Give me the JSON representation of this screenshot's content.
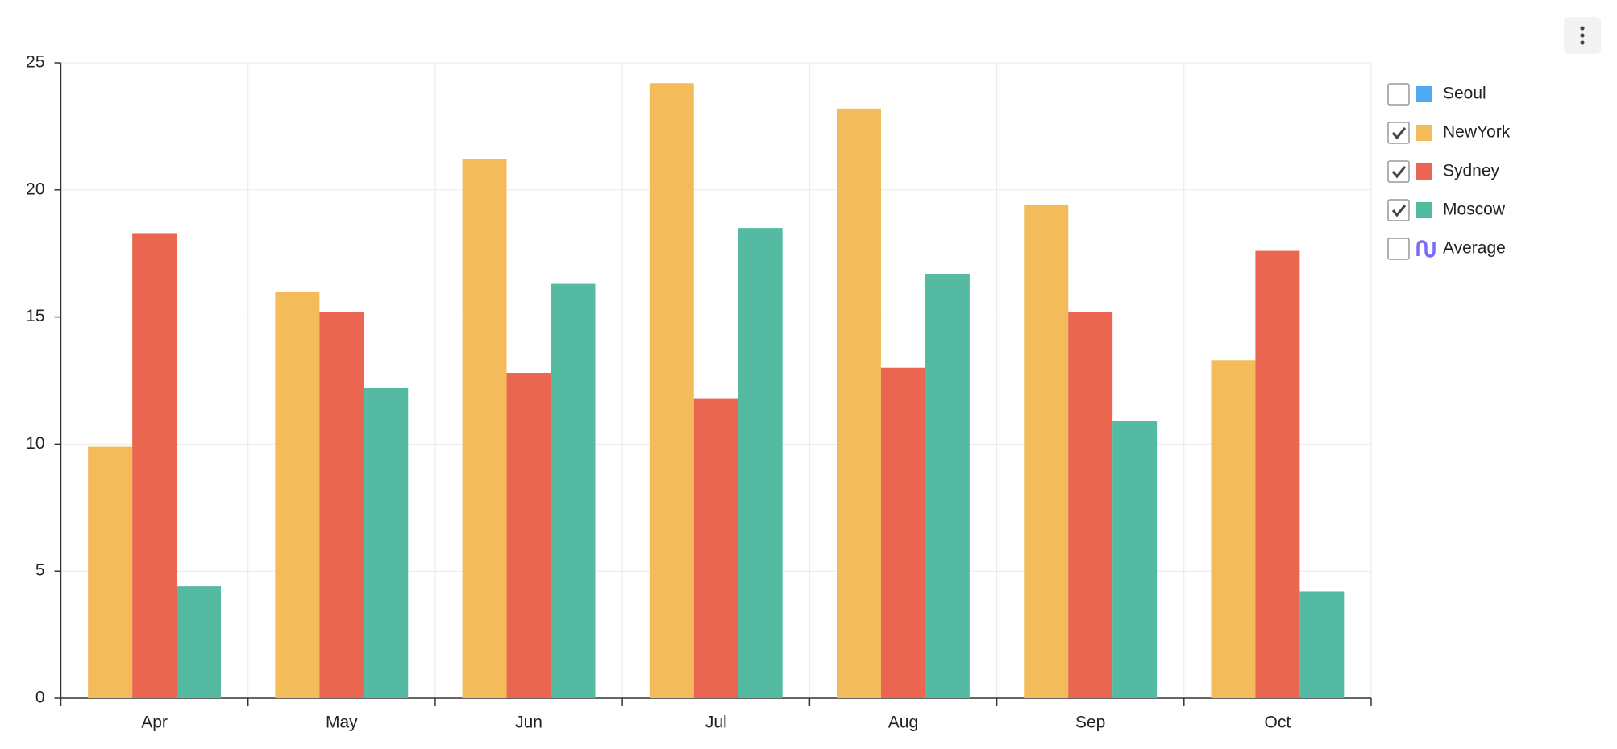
{
  "chart_data": {
    "type": "bar",
    "categories": [
      "Apr",
      "May",
      "Jun",
      "Jul",
      "Aug",
      "Sep",
      "Oct"
    ],
    "series": [
      {
        "name": "NewYork",
        "color": "#f4bb5b",
        "values": [
          9.9,
          16.0,
          21.2,
          24.2,
          23.2,
          19.4,
          13.3
        ]
      },
      {
        "name": "Sydney",
        "color": "#eb6650",
        "values": [
          18.3,
          15.2,
          12.8,
          11.8,
          13.0,
          15.2,
          17.6
        ]
      },
      {
        "name": "Moscow",
        "color": "#55baa2",
        "values": [
          4.4,
          12.2,
          16.3,
          18.5,
          16.7,
          10.9,
          4.2
        ]
      }
    ],
    "legend": [
      {
        "name": "Seoul",
        "color": "#4ea8f5",
        "checked": false,
        "icon": "square"
      },
      {
        "name": "NewYork",
        "color": "#f4bb5b",
        "checked": true,
        "icon": "square"
      },
      {
        "name": "Sydney",
        "color": "#eb6650",
        "checked": true,
        "icon": "square"
      },
      {
        "name": "Moscow",
        "color": "#55baa2",
        "checked": true,
        "icon": "square"
      },
      {
        "name": "Average",
        "color": "#7b6cf6",
        "checked": false,
        "icon": "wave"
      }
    ],
    "ylim": [
      0,
      25
    ],
    "yticks": [
      0,
      5,
      10,
      15,
      20,
      25
    ],
    "grid": true
  }
}
